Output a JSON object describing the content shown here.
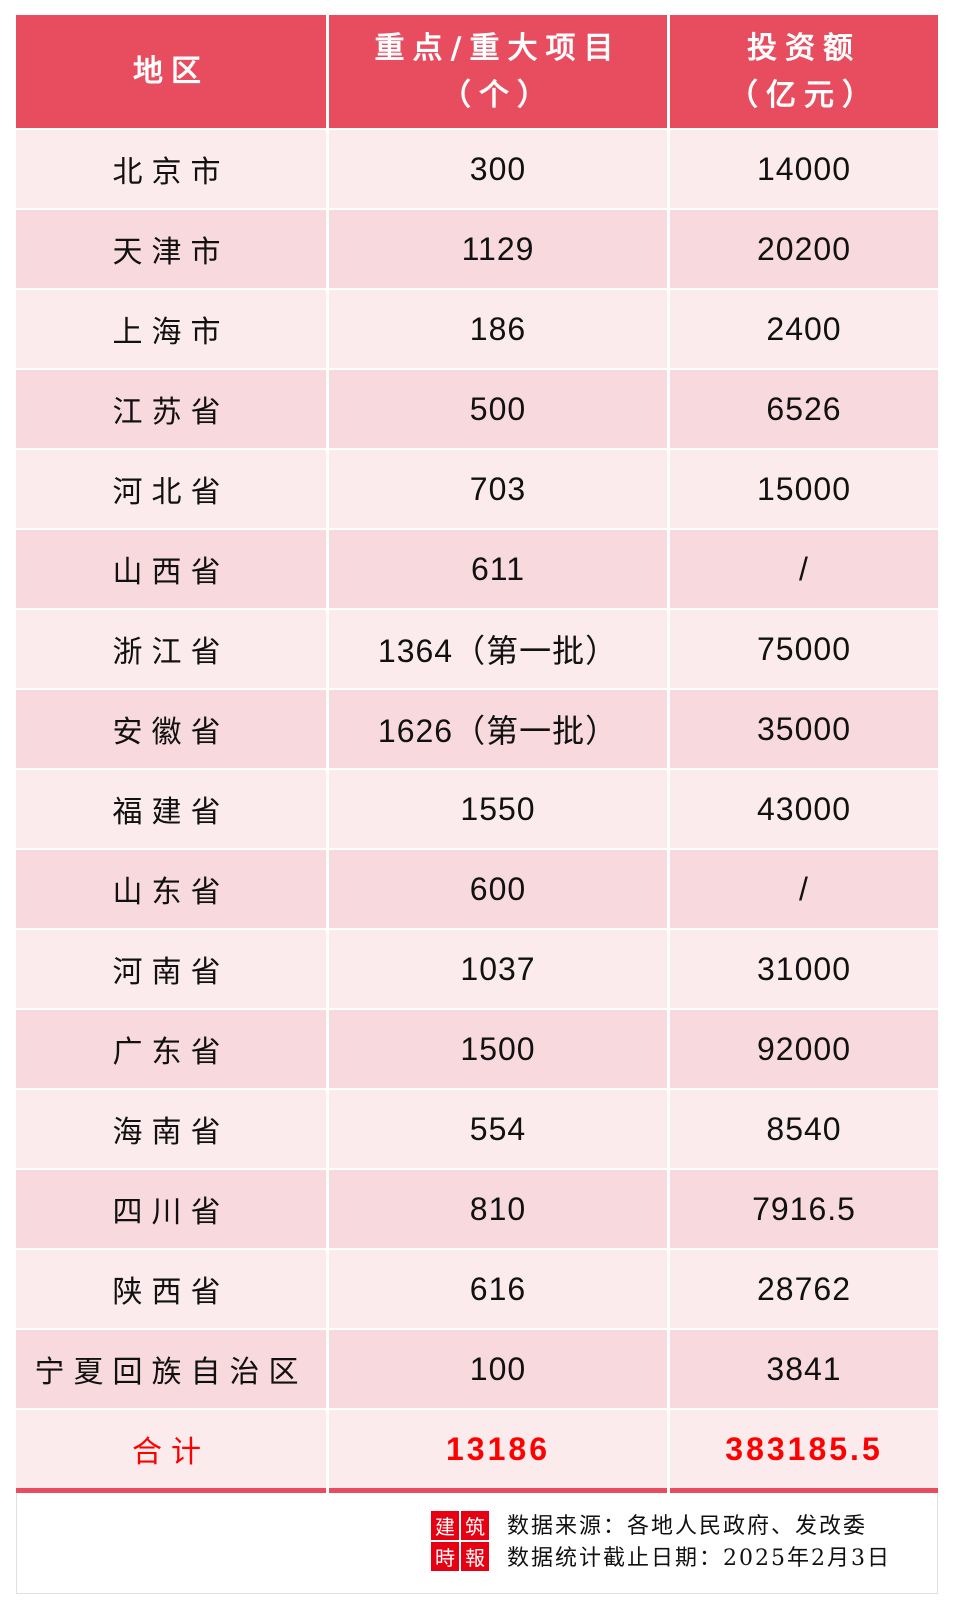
{
  "header": {
    "region": "地区",
    "projects_line1": "重点/重大项目",
    "projects_line2": "（个）",
    "investment_line1": "投资额",
    "investment_line2": "（亿元）"
  },
  "rows": [
    {
      "region": "北京市",
      "projects": "300",
      "investment": "14000"
    },
    {
      "region": "天津市",
      "projects": "1129",
      "investment": "20200"
    },
    {
      "region": "上海市",
      "projects": "186",
      "investment": "2400"
    },
    {
      "region": "江苏省",
      "projects": "500",
      "investment": "6526"
    },
    {
      "region": "河北省",
      "projects": "703",
      "investment": "15000"
    },
    {
      "region": "山西省",
      "projects": "611",
      "investment": "/"
    },
    {
      "region": "浙江省",
      "projects": "1364（第一批）",
      "investment": "75000"
    },
    {
      "region": "安徽省",
      "projects": "1626（第一批）",
      "investment": "35000"
    },
    {
      "region": "福建省",
      "projects": "1550",
      "investment": "43000"
    },
    {
      "region": "山东省",
      "projects": "600",
      "investment": "/"
    },
    {
      "region": "河南省",
      "projects": "1037",
      "investment": "31000"
    },
    {
      "region": "广东省",
      "projects": "1500",
      "investment": "92000"
    },
    {
      "region": "海南省",
      "projects": "554",
      "investment": "8540"
    },
    {
      "region": "四川省",
      "projects": "810",
      "investment": "7916.5"
    },
    {
      "region": "陕西省",
      "projects": "616",
      "investment": "28762"
    },
    {
      "region": "宁夏回族自治区",
      "projects": "100",
      "investment": "3841"
    }
  ],
  "total": {
    "label": "合计",
    "projects": "13186",
    "investment": "383185.5"
  },
  "footer": {
    "logo_text": [
      "建",
      "筑",
      "時",
      "報"
    ],
    "source": "数据来源：各地人民政府、发改委",
    "cutoff": "数据统计截止日期：2025年2月3日"
  },
  "colors": {
    "header_bg": "#E84C5F",
    "row_light": "#FBEBEC",
    "row_dark": "#F8D9DD",
    "total_text": "#FF0000"
  }
}
